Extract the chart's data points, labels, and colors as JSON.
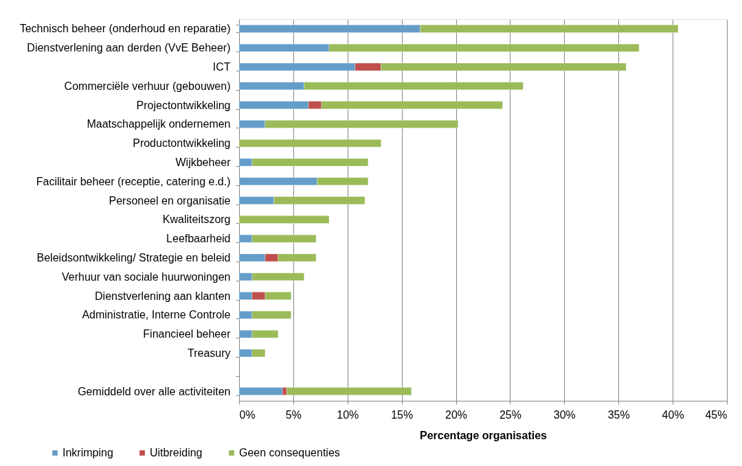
{
  "chart_data": {
    "type": "bar",
    "orientation": "horizontal",
    "stacked": true,
    "categories": [
      "Technisch beheer (onderhoud en reparatie)",
      "Dienstverlening aan derden (VvE Beheer)",
      "ICT",
      "Commerciële verhuur (gebouwen)",
      "Projectontwikkeling",
      "Maatschappelijk ondernemen",
      "Productontwikkeling",
      "Wijkbeheer",
      "Facilitair beheer (receptie, catering e.d.)",
      "Personeel en organisatie",
      "Kwaliteitszorg",
      "Leefbaarheid",
      "Beleidsontwikkeling/ Strategie en beleid",
      "Verhuur van sociale huurwoningen",
      "Dienstverlening aan klanten",
      "Administratie, Interne Controle",
      "Financieel beheer",
      "Treasury",
      null,
      "Gemiddeld over alle activiteiten"
    ],
    "series": [
      {
        "name": "Inkrimping",
        "color": "#659dc9",
        "values": [
          16.7,
          8.3,
          10.7,
          6.0,
          6.4,
          2.4,
          0,
          1.2,
          7.2,
          3.2,
          0,
          1.2,
          2.4,
          1.2,
          1.2,
          1.2,
          1.2,
          1.2,
          null,
          4.0
        ]
      },
      {
        "name": "Uitbreiding",
        "color": "#c0504d",
        "values": [
          0,
          0,
          2.4,
          0,
          1.2,
          0,
          0,
          0,
          0,
          0,
          0,
          0,
          1.2,
          0,
          1.2,
          0,
          0,
          0,
          null,
          0.4
        ]
      },
      {
        "name": "Geen consequenties",
        "color": "#9bbb59",
        "values": [
          23.8,
          28.6,
          22.6,
          20.2,
          16.7,
          17.8,
          13.1,
          10.7,
          4.7,
          8.4,
          8.3,
          5.9,
          3.5,
          4.8,
          2.4,
          3.6,
          2.4,
          1.2,
          null,
          11.5
        ]
      }
    ],
    "xlabel": "Percentage organisaties",
    "xlim": [
      0,
      45
    ],
    "xticks": [
      {
        "value": 0,
        "label": "0%"
      },
      {
        "value": 5,
        "label": "5%"
      },
      {
        "value": 10,
        "label": "10%"
      },
      {
        "value": 15,
        "label": "15%"
      },
      {
        "value": 20,
        "label": "20%"
      },
      {
        "value": 25,
        "label": "25%"
      },
      {
        "value": 30,
        "label": "30%"
      },
      {
        "value": 35,
        "label": "35%"
      },
      {
        "value": 40,
        "label": "40%"
      },
      {
        "value": 45,
        "label": "45%"
      }
    ],
    "grid": "x",
    "legend": "bottom left"
  }
}
